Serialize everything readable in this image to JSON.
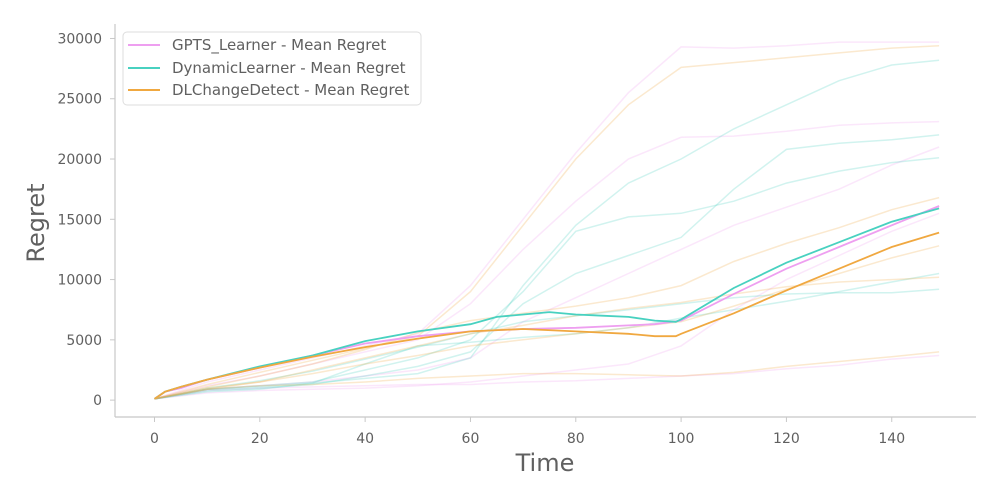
{
  "chart_data": {
    "type": "line",
    "title": "",
    "xlabel": "Time",
    "ylabel": "Regret",
    "xlim": [
      -7.5,
      156
    ],
    "ylim": [
      -1400,
      31200
    ],
    "xticks": [
      0,
      20,
      40,
      60,
      80,
      100,
      120,
      140
    ],
    "yticks": [
      0,
      5000,
      10000,
      15000,
      20000,
      25000,
      30000
    ],
    "grid": false,
    "legend": {
      "position": "top-left"
    },
    "series": [
      {
        "name": "GPTS_Learner - Mean Regret",
        "color": "#ee9ff0",
        "x": [
          0,
          2,
          5,
          10,
          20,
          30,
          40,
          50,
          60,
          70,
          80,
          90,
          95,
          100,
          110,
          120,
          130,
          140,
          149
        ],
        "values": [
          100,
          700,
          1000,
          1700,
          2700,
          3700,
          4700,
          5300,
          5700,
          5900,
          6000,
          6200,
          6300,
          6600,
          8800,
          10900,
          12700,
          14500,
          16100
        ]
      },
      {
        "name": "DynamicLearner - Mean Regret",
        "color": "#48d1c0",
        "x": [
          0,
          2,
          5,
          10,
          20,
          30,
          40,
          50,
          60,
          65,
          70,
          75,
          80,
          85,
          90,
          95,
          99,
          100,
          110,
          120,
          130,
          140,
          149
        ],
        "values": [
          100,
          700,
          1100,
          1700,
          2800,
          3700,
          4900,
          5700,
          6300,
          6900,
          7100,
          7300,
          7100,
          7000,
          6900,
          6600,
          6500,
          6700,
          9300,
          11400,
          13100,
          14800,
          15900
        ]
      },
      {
        "name": "DLChangeDetect - Mean Regret",
        "color": "#f0a840",
        "x": [
          0,
          2,
          5,
          10,
          20,
          30,
          40,
          50,
          60,
          70,
          80,
          90,
          95,
          99,
          100,
          110,
          120,
          130,
          140,
          149
        ],
        "values": [
          100,
          700,
          1100,
          1700,
          2700,
          3600,
          4400,
          5100,
          5700,
          5900,
          5700,
          5500,
          5300,
          5300,
          5500,
          7200,
          9100,
          10900,
          12700,
          13900
        ]
      }
    ],
    "background_runs": [
      {
        "color": "#ee9ff0",
        "x": [
          0,
          10,
          20,
          30,
          40,
          50,
          60,
          70,
          80,
          90,
          100,
          110,
          120,
          130,
          140,
          149
        ],
        "values": [
          100,
          1500,
          2500,
          3500,
          4500,
          5500,
          9500,
          15000,
          20500,
          25500,
          29300,
          29200,
          29400,
          29700,
          29700,
          29700
        ]
      },
      {
        "color": "#ee9ff0",
        "x": [
          0,
          10,
          20,
          30,
          40,
          50,
          60,
          70,
          80,
          90,
          100,
          110,
          120,
          130,
          140,
          149
        ],
        "values": [
          100,
          1200,
          2000,
          3000,
          4000,
          5000,
          8000,
          12500,
          16500,
          20000,
          21800,
          21900,
          22300,
          22800,
          23000,
          23100
        ]
      },
      {
        "color": "#ee9ff0",
        "x": [
          0,
          10,
          20,
          30,
          40,
          50,
          60,
          70,
          80,
          90,
          100,
          110,
          120,
          130,
          140,
          149
        ],
        "values": [
          100,
          800,
          1000,
          1100,
          1200,
          1300,
          1300,
          1500,
          1600,
          1800,
          2000,
          2200,
          2600,
          2900,
          3400,
          3700
        ]
      },
      {
        "color": "#ee9ff0",
        "x": [
          0,
          10,
          20,
          30,
          40,
          50,
          60,
          70,
          80,
          90,
          100,
          110,
          120,
          130,
          140,
          149
        ],
        "values": [
          100,
          900,
          1200,
          1500,
          2000,
          2500,
          3500,
          6500,
          8500,
          10500,
          12500,
          14500,
          16000,
          17500,
          19500,
          21000
        ]
      },
      {
        "color": "#ee9ff0",
        "x": [
          0,
          10,
          20,
          30,
          40,
          50,
          60,
          70,
          80,
          90,
          100,
          110,
          120,
          130,
          140,
          149
        ],
        "values": [
          100,
          600,
          800,
          900,
          1000,
          1200,
          1500,
          2000,
          2500,
          3000,
          4500,
          7500,
          10000,
          12000,
          14000,
          15500
        ]
      },
      {
        "color": "#48d1c0",
        "x": [
          0,
          10,
          20,
          30,
          40,
          50,
          60,
          70,
          80,
          90,
          100,
          110,
          120,
          130,
          140,
          149
        ],
        "values": [
          100,
          900,
          1100,
          1400,
          1800,
          2200,
          3500,
          9500,
          14500,
          18000,
          20000,
          22500,
          24500,
          26500,
          27800,
          28200
        ]
      },
      {
        "color": "#48d1c0",
        "x": [
          0,
          10,
          20,
          30,
          40,
          50,
          60,
          70,
          80,
          90,
          100,
          110,
          120,
          130,
          140,
          149
        ],
        "values": [
          100,
          800,
          1000,
          1300,
          2000,
          2800,
          4000,
          8000,
          10500,
          12000,
          13500,
          17500,
          20800,
          21300,
          21600,
          22000
        ]
      },
      {
        "color": "#48d1c0",
        "x": [
          0,
          10,
          20,
          30,
          40,
          50,
          60,
          70,
          80,
          90,
          100,
          110,
          120,
          130,
          140,
          149
        ],
        "values": [
          100,
          1000,
          1600,
          2400,
          3400,
          4400,
          5500,
          6500,
          7000,
          7500,
          8000,
          8500,
          8800,
          8900,
          8900,
          9200
        ]
      },
      {
        "color": "#48d1c0",
        "x": [
          0,
          10,
          20,
          30,
          40,
          50,
          60,
          70,
          80,
          90,
          100,
          110,
          120,
          130,
          140,
          149
        ],
        "values": [
          100,
          900,
          1200,
          1500,
          2500,
          3500,
          5000,
          9000,
          14000,
          15200,
          15500,
          16500,
          18000,
          19000,
          19700,
          20100
        ]
      },
      {
        "color": "#48d1c0",
        "x": [
          0,
          10,
          20,
          30,
          40,
          50,
          60,
          70,
          80,
          90,
          100,
          110,
          120,
          130,
          140,
          149
        ],
        "values": [
          100,
          700,
          900,
          1400,
          3000,
          4500,
          4800,
          5200,
          5500,
          6000,
          6800,
          7500,
          8200,
          9000,
          9800,
          10500
        ]
      },
      {
        "color": "#f0a840",
        "x": [
          0,
          10,
          20,
          30,
          40,
          50,
          60,
          70,
          80,
          90,
          100,
          110,
          120,
          130,
          140,
          149
        ],
        "values": [
          100,
          1300,
          2300,
          3300,
          4300,
          5300,
          9000,
          14500,
          20000,
          24500,
          27600,
          28000,
          28400,
          28800,
          29200,
          29400
        ]
      },
      {
        "color": "#f0a840",
        "x": [
          0,
          10,
          20,
          30,
          40,
          50,
          60,
          70,
          80,
          90,
          100,
          110,
          120,
          130,
          140,
          149
        ],
        "values": [
          100,
          900,
          1200,
          1300,
          1500,
          1800,
          2000,
          2200,
          2200,
          2100,
          2000,
          2300,
          2800,
          3200,
          3600,
          4000
        ]
      },
      {
        "color": "#f0a840",
        "x": [
          0,
          10,
          20,
          30,
          40,
          50,
          60,
          70,
          80,
          90,
          100,
          110,
          120,
          130,
          140,
          149
        ],
        "values": [
          100,
          1100,
          2000,
          3000,
          4200,
          5600,
          6600,
          7200,
          7800,
          8500,
          9500,
          11500,
          13000,
          14300,
          15800,
          16800
        ]
      },
      {
        "color": "#f0a840",
        "x": [
          0,
          10,
          20,
          30,
          40,
          50,
          60,
          70,
          80,
          90,
          100,
          110,
          120,
          130,
          140,
          149
        ],
        "values": [
          100,
          1000,
          1500,
          2200,
          3000,
          3700,
          4500,
          5000,
          5500,
          6000,
          6500,
          7800,
          9200,
          10500,
          11800,
          12800
        ]
      },
      {
        "color": "#f0a840",
        "x": [
          0,
          10,
          20,
          30,
          40,
          50,
          60,
          70,
          80,
          90,
          100,
          110,
          120,
          130,
          140,
          149
        ],
        "values": [
          100,
          900,
          1500,
          2500,
          3500,
          4500,
          5500,
          6200,
          7000,
          7600,
          8100,
          8800,
          9400,
          9800,
          10000,
          10200
        ]
      }
    ]
  }
}
